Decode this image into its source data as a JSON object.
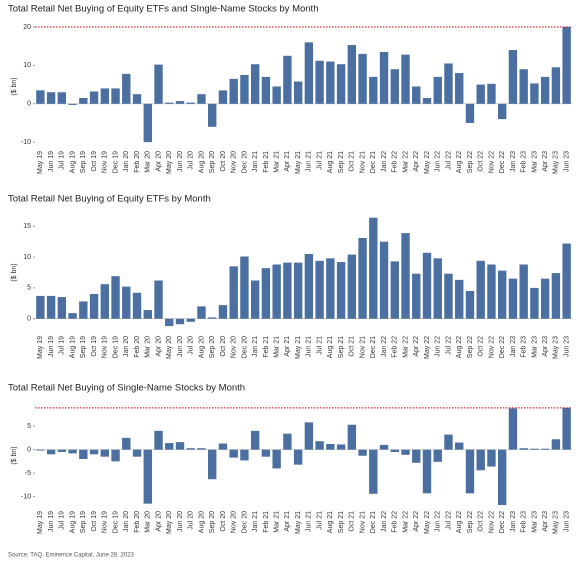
{
  "chart_data": [
    {
      "type": "bar",
      "title": "Total Retail Net Buying of Equity ETFs and SIngle-Name Stocks by Month",
      "y_label": "($ bn)",
      "color": "#4a6fa0",
      "reference_line": {
        "value": 20,
        "color": "#c00000"
      },
      "ylim": [
        -11,
        20
      ],
      "yticks": [
        -10,
        0,
        10,
        20
      ],
      "categories": [
        "May 19",
        "Jun 19",
        "Jul 19",
        "Aug 19",
        "Sep 19",
        "Oct 19",
        "Nov 19",
        "Dec 19",
        "Jan 20",
        "Feb 20",
        "Mar 20",
        "Apr 20",
        "May 20",
        "Jun 20",
        "Jul 20",
        "Aug 20",
        "Sep 20",
        "Oct 20",
        "Nov 20",
        "Dec 20",
        "Jan 21",
        "Feb 21",
        "Mar 21",
        "Apr 21",
        "May 21",
        "Jun 21",
        "Jul 21",
        "Aug 21",
        "Sep 21",
        "Oct 21",
        "Nov 21",
        "Dec 21",
        "Jan 22",
        "Feb 22",
        "Mar 22",
        "Apr 22",
        "May 22",
        "Jun 22",
        "Jul 22",
        "Aug 22",
        "Sep 22",
        "Oct 22",
        "Nov 22",
        "Dec 22",
        "Jan 23",
        "Feb 23",
        "Mar 23",
        "Apr 23",
        "May 23",
        "Jun 23"
      ],
      "values": [
        3.5,
        3,
        3,
        -0.3,
        1.5,
        3.2,
        4,
        4,
        7.8,
        2.5,
        -10,
        10.2,
        0.3,
        0.7,
        0.3,
        2.5,
        -6,
        3.5,
        6.5,
        7.5,
        10.3,
        7,
        4.5,
        12.5,
        5.8,
        16,
        11.2,
        11,
        10.3,
        15.3,
        13,
        7,
        13.5,
        9,
        12.8,
        4.5,
        1.5,
        7,
        10.5,
        8,
        -5,
        5,
        5.2,
        -4,
        14,
        9,
        5.3,
        7,
        9.5,
        20
      ]
    },
    {
      "type": "bar",
      "title": "Total Retail Net Buying of Equity ETFs by Month",
      "y_label": "($ bn)",
      "color": "#4a6fa0",
      "ylim": [
        -2,
        17
      ],
      "yticks": [
        0,
        5,
        10,
        15
      ],
      "categories": [
        "May 19",
        "Jun 19",
        "Jul 19",
        "Aug 19",
        "Sep 19",
        "Oct 19",
        "Nov 19",
        "Dec 19",
        "Jan 20",
        "Feb 20",
        "Mar 20",
        "Apr 20",
        "May 20",
        "Jun 20",
        "Jul 20",
        "Aug 20",
        "Sep 20",
        "Oct 20",
        "Nov 20",
        "Dec 20",
        "Jan 21",
        "Feb 21",
        "Mar 21",
        "Apr 21",
        "May 21",
        "Jun 21",
        "Jul 21",
        "Aug 21",
        "Sep 21",
        "Oct 21",
        "Nov 21",
        "Dec 21",
        "Jan 22",
        "Feb 22",
        "Mar 22",
        "Apr 22",
        "May 22",
        "Jun 22",
        "Jul 22",
        "Aug 22",
        "Sep 22",
        "Oct 22",
        "Nov 22",
        "Dec 22",
        "Jan 23",
        "Feb 23",
        "Mar 23",
        "Apr 23",
        "May 23",
        "Jun 23"
      ],
      "values": [
        3.7,
        3.7,
        3.5,
        0.9,
        2.8,
        4,
        5.6,
        6.9,
        5.2,
        4.2,
        1.4,
        6.2,
        -1.2,
        -0.9,
        -0.5,
        2,
        0.2,
        2.2,
        8.5,
        10.1,
        6.2,
        8.2,
        8.8,
        9.1,
        9.1,
        10.5,
        9.4,
        9.8,
        9.2,
        10.4,
        13.1,
        16.4,
        12.5,
        9.3,
        13.9,
        7.3,
        10.7,
        9.8,
        7.3,
        6.3,
        4.5,
        9.4,
        8.8,
        7.8,
        6.5,
        8.8,
        5,
        6.5,
        7.4,
        12.2
      ]
    },
    {
      "type": "bar",
      "title": "Total Retail Net Buying of Single-Name Stocks by Month",
      "y_label": "($ bn)",
      "color": "#4a6fa0",
      "reference_line": {
        "value": 8.9,
        "color": "#c00000"
      },
      "ylim": [
        -12,
        9.5
      ],
      "yticks": [
        -10,
        -5,
        0,
        5
      ],
      "categories": [
        "May 19",
        "Jun 19",
        "Jul 19",
        "Aug 19",
        "Sep 19",
        "Oct 19",
        "Nov 19",
        "Dec 19",
        "Jan 20",
        "Feb 20",
        "Mar 20",
        "Apr 20",
        "May 20",
        "Jun 20",
        "Jul 20",
        "Aug 20",
        "Sep 20",
        "Oct 20",
        "Nov 20",
        "Dec 20",
        "Jan 21",
        "Feb 21",
        "Mar 21",
        "Apr 21",
        "May 21",
        "Jun 21",
        "Jul 21",
        "Aug 21",
        "Sep 21",
        "Oct 21",
        "Nov 21",
        "Dec 21",
        "Jan 22",
        "Feb 22",
        "Mar 22",
        "Apr 22",
        "May 22",
        "Jun 22",
        "Jul 22",
        "Aug 22",
        "Sep 22",
        "Oct 22",
        "Nov 22",
        "Dec 22",
        "Jan 23",
        "Feb 23",
        "Mar 23",
        "Apr 23",
        "May 23",
        "Jun 23"
      ],
      "values": [
        -0.2,
        -1,
        -0.5,
        -0.8,
        -2,
        -1,
        -1.5,
        -2.5,
        2.5,
        -1.5,
        -11.5,
        4,
        1.4,
        1.6,
        0.3,
        0.3,
        -6.3,
        1.3,
        -1.7,
        -2.3,
        4,
        -1.5,
        -4,
        3.4,
        -3.2,
        5.8,
        1.8,
        1.2,
        1.1,
        5.3,
        -1.3,
        -9.4,
        1,
        -0.5,
        -1.1,
        -2.8,
        -9.3,
        -2.6,
        3.2,
        1.5,
        -9.3,
        -4.4,
        -3.6,
        -11.8,
        8.8,
        0.3,
        0.2,
        0.2,
        2.2,
        8.9
      ]
    }
  ],
  "source": "Source: TAQ, Eminence Capital, June 28, 2023"
}
